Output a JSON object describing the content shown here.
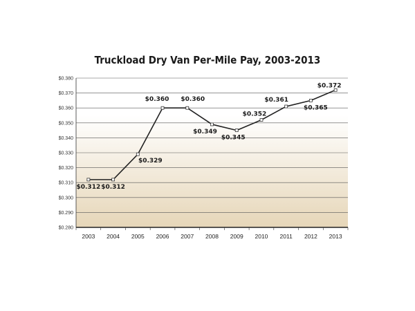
{
  "chart_data": {
    "type": "line",
    "title": "Truckload Dry Van Per-Mile Pay, 2003-2013",
    "xlabel": "",
    "ylabel": "",
    "categories": [
      "2003",
      "2004",
      "2005",
      "2006",
      "2007",
      "2008",
      "2009",
      "2010",
      "2011",
      "2012",
      "2013"
    ],
    "series": [
      {
        "name": "Per-Mile Pay",
        "values": [
          0.312,
          0.312,
          0.329,
          0.36,
          0.36,
          0.349,
          0.345,
          0.352,
          0.361,
          0.365,
          0.372
        ]
      }
    ],
    "data_labels": [
      "$0.312",
      "$0.312",
      "$0.329",
      "$0.360",
      "$0.360",
      "$0.349",
      "$0.345",
      "$0.352",
      "$0.361",
      "$0.365",
      "$0.372"
    ],
    "ylim": [
      0.28,
      0.38
    ],
    "yticks": [
      "$0.280",
      "$0.290",
      "$0.300",
      "$0.310",
      "$0.320",
      "$0.330",
      "$0.340",
      "$0.350",
      "$0.360",
      "$0.370",
      "$0.380"
    ],
    "grid": true,
    "legend": "none",
    "colors": {
      "line": "#222222",
      "grid": "#555555",
      "fill_top": "#ffffff",
      "fill_bottom": "#e6d6b8"
    }
  }
}
